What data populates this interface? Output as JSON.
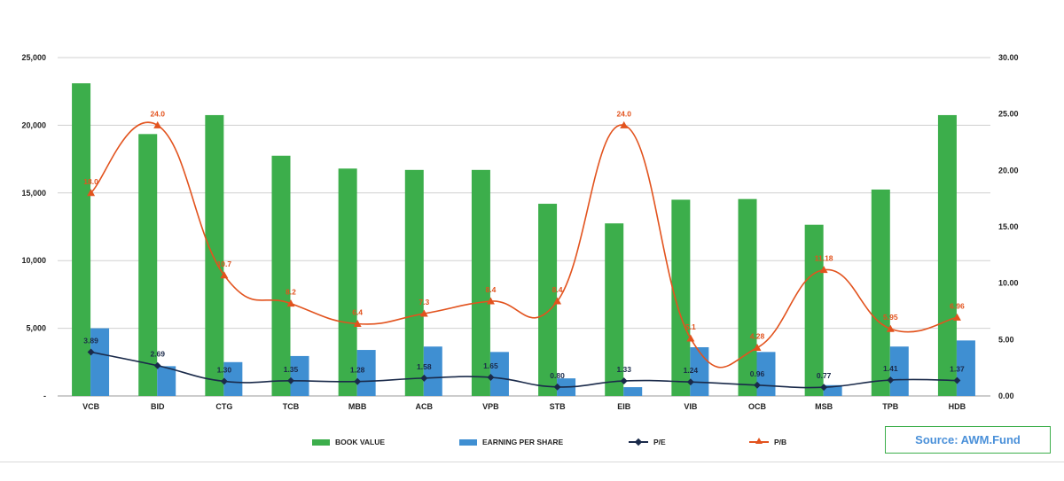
{
  "chart_data": {
    "type": "bar",
    "categories": [
      "VCB",
      "BID",
      "CTG",
      "TCB",
      "MBB",
      "ACB",
      "VPB",
      "STB",
      "EIB",
      "VIB",
      "OCB",
      "MSB",
      "TPB",
      "HDB"
    ],
    "series": [
      {
        "name": "BOOK VALUE",
        "kind": "bar",
        "axis": "left",
        "color": "#3cae4b",
        "values": [
          23100,
          19350,
          20750,
          17750,
          16800,
          16700,
          16700,
          14200,
          12750,
          14500,
          14550,
          12650,
          15250,
          20750
        ]
      },
      {
        "name": "EARNING PER SHARE",
        "kind": "bar",
        "axis": "left",
        "color": "#3f8fd2",
        "values": [
          5000,
          2200,
          2500,
          2950,
          3400,
          3650,
          3250,
          1300,
          650,
          3600,
          3250,
          800,
          3650,
          4100
        ]
      },
      {
        "name": "P/E",
        "kind": "line",
        "axis": "right",
        "color": "#1a2a4a",
        "values": [
          3.89,
          2.69,
          1.3,
          1.35,
          1.28,
          1.58,
          1.65,
          0.8,
          1.33,
          1.24,
          0.96,
          0.77,
          1.41,
          1.37
        ],
        "labels": [
          "3.89",
          "2.69",
          "1.30",
          "1.35",
          "1.28",
          "1.58",
          "1.65",
          "0.80",
          "1.33",
          "1.24",
          "0.96",
          "0.77",
          "1.41",
          "1.37"
        ]
      },
      {
        "name": "P/B",
        "kind": "line",
        "axis": "right",
        "color": "#e2531e",
        "values": [
          18.0,
          24.0,
          10.7,
          8.2,
          6.4,
          7.3,
          8.4,
          8.4,
          24.0,
          5.1,
          4.28,
          11.18,
          5.95,
          6.96
        ],
        "labels": [
          "18.0",
          "24.0",
          "10.7",
          "8.2",
          "6.4",
          "7.3",
          "8.4",
          "8.4",
          "24.0",
          "5.1",
          "4.28",
          "11.18",
          "5.95",
          "6.96"
        ]
      }
    ],
    "y_left": {
      "min": 0,
      "max": 25000,
      "ticks": [
        0,
        5000,
        10000,
        15000,
        20000,
        25000
      ],
      "tick_labels": [
        "-",
        "5,000",
        "10,000",
        "15,000",
        "20,000",
        "25,000"
      ]
    },
    "y_right": {
      "min": 0,
      "max": 30,
      "ticks": [
        0,
        5,
        10,
        15,
        20,
        25,
        30
      ],
      "tick_labels": [
        "0.00",
        "5.00",
        "10.00",
        "15.00",
        "20.00",
        "25.00",
        "30.00"
      ]
    },
    "grid": true,
    "legend": [
      "BOOK VALUE",
      "EARNING PER SHARE",
      "P/E",
      "P/B"
    ],
    "legend_position": "bottom",
    "title": "",
    "xlabel": "",
    "ylabel": ""
  },
  "source": {
    "text": "Source: AWM.Fund"
  },
  "colors": {
    "book": "#3cae4b",
    "eps": "#3f8fd2",
    "pe": "#1a2a4a",
    "pb": "#e2531e",
    "grid": "#d0d0d0"
  }
}
